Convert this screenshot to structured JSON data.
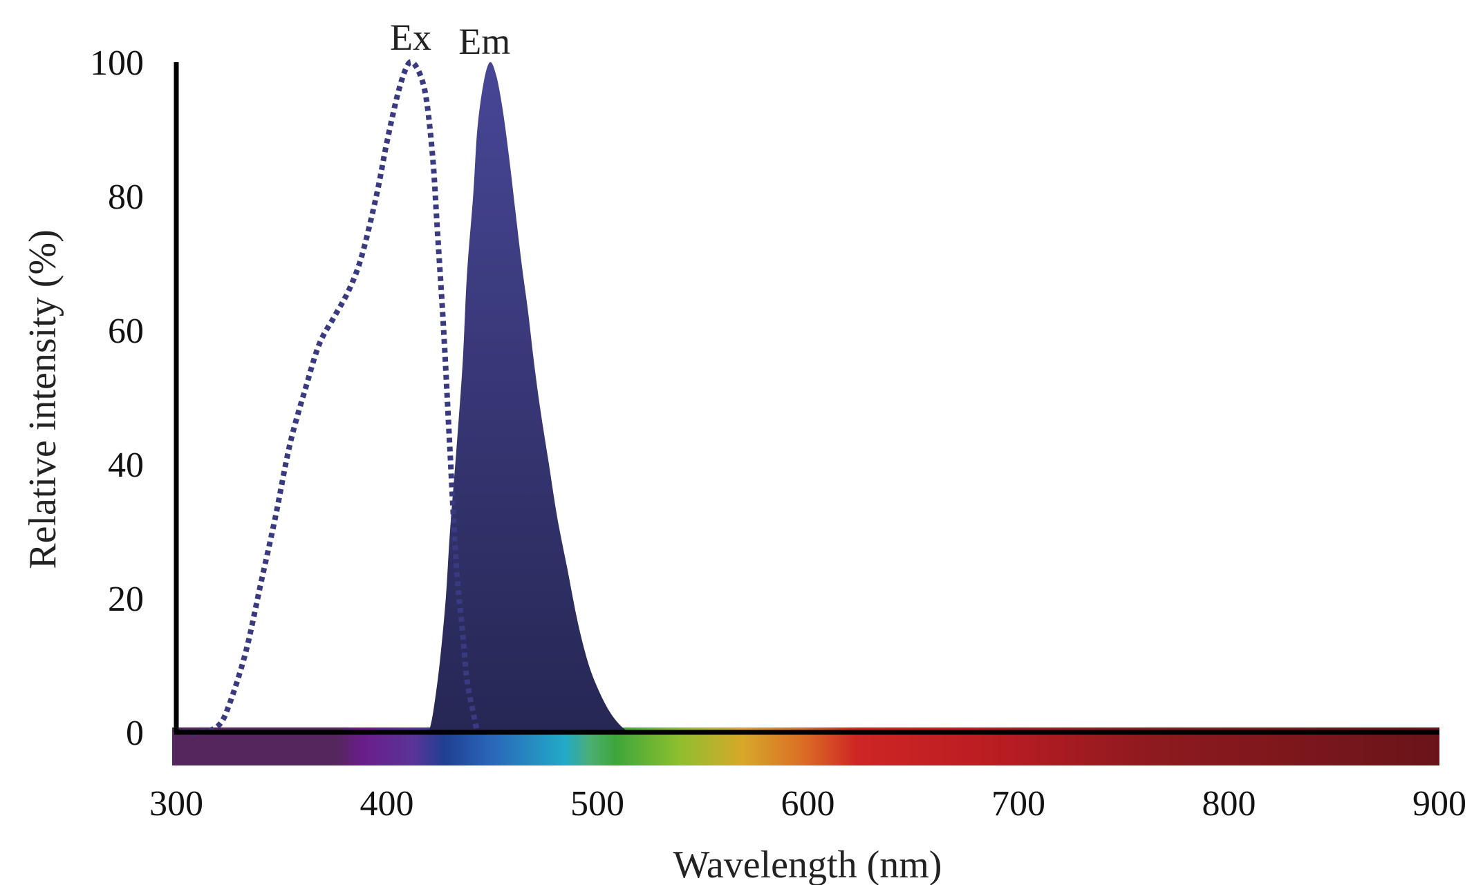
{
  "chart_data": {
    "type": "area",
    "title": "",
    "xlabel": "Wavelength (nm)",
    "ylabel": "Relative intensity (%)",
    "xlim": [
      300,
      900
    ],
    "ylim": [
      0,
      100
    ],
    "x_ticks": [
      300,
      400,
      500,
      600,
      700,
      800,
      900
    ],
    "y_ticks": [
      0,
      20,
      40,
      60,
      80,
      100
    ],
    "grid": false,
    "legend": "none",
    "spectrum_bar": true,
    "series": [
      {
        "name": "Ex",
        "style": "dotted",
        "color": "#3a3a80",
        "points": [
          [
            303,
            0
          ],
          [
            312,
            0
          ],
          [
            320,
            1
          ],
          [
            325,
            4
          ],
          [
            333,
            12
          ],
          [
            340,
            22
          ],
          [
            347,
            32
          ],
          [
            354,
            43
          ],
          [
            362,
            52
          ],
          [
            368,
            58
          ],
          [
            375,
            62
          ],
          [
            382,
            66
          ],
          [
            388,
            71
          ],
          [
            395,
            80
          ],
          [
            400,
            88
          ],
          [
            405,
            95
          ],
          [
            409,
            99
          ],
          [
            412,
            100
          ],
          [
            416,
            98
          ],
          [
            419,
            94
          ],
          [
            422,
            85
          ],
          [
            424,
            75
          ],
          [
            427,
            60
          ],
          [
            430,
            42
          ],
          [
            433,
            25
          ],
          [
            436,
            15
          ],
          [
            438,
            8
          ],
          [
            441,
            3
          ],
          [
            443,
            0
          ]
        ]
      },
      {
        "name": "Em",
        "style": "filled",
        "color": "#2e2e6e",
        "points": [
          [
            420,
            0
          ],
          [
            422,
            3
          ],
          [
            425,
            10
          ],
          [
            428,
            20
          ],
          [
            430,
            30
          ],
          [
            433,
            42
          ],
          [
            436,
            55
          ],
          [
            438,
            68
          ],
          [
            441,
            80
          ],
          [
            443,
            90
          ],
          [
            446,
            97
          ],
          [
            449,
            100
          ],
          [
            452,
            98
          ],
          [
            455,
            93
          ],
          [
            458,
            86
          ],
          [
            461,
            78
          ],
          [
            464,
            70
          ],
          [
            467,
            63
          ],
          [
            470,
            55
          ],
          [
            473,
            48
          ],
          [
            477,
            40
          ],
          [
            481,
            32
          ],
          [
            486,
            24
          ],
          [
            491,
            16
          ],
          [
            496,
            10
          ],
          [
            501,
            6
          ],
          [
            506,
            3
          ],
          [
            511,
            1
          ],
          [
            515,
            0
          ]
        ]
      }
    ],
    "series_labels": [
      "Ex",
      "Em"
    ]
  }
}
